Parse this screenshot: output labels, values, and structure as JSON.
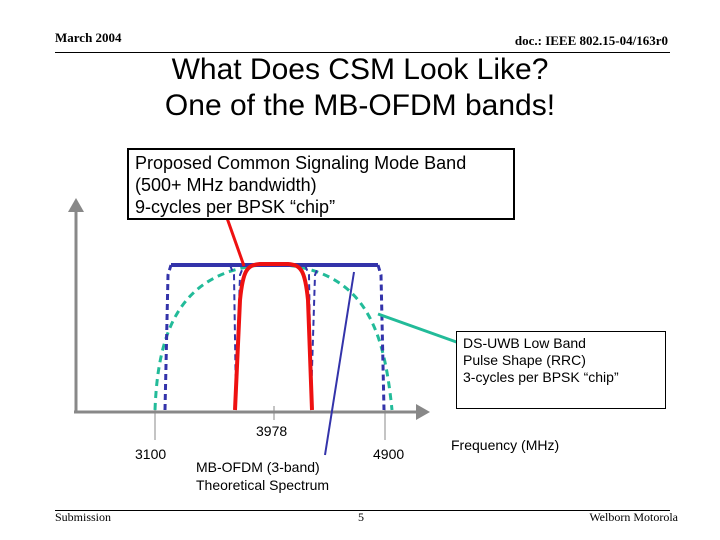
{
  "header": {
    "date": "March 2004",
    "doc": "doc.: IEEE 802.15-04/163r0"
  },
  "title": {
    "line1": "What Does CSM Look Like?",
    "line2": "One of the MB-OFDM bands!"
  },
  "callouts": {
    "csm": {
      "line1": "Proposed Common Signaling Mode Band",
      "line2": "(500+ MHz bandwidth)",
      "line3": "9-cycles per BPSK “chip”"
    },
    "dsuwb": {
      "line1": "DS-UWB Low Band",
      "line2": "Pulse Shape (RRC)",
      "line3": "3-cycles per BPSK “chip”"
    },
    "ofdm": {
      "line1": "MB-OFDM (3-band)",
      "line2": "Theoretical Spectrum"
    }
  },
  "axis": {
    "x_label": "Frequency (MHz)",
    "ticks": [
      "3100",
      "3978",
      "4900"
    ]
  },
  "colors": {
    "csm": "#ee1111",
    "ofdm": "#3333aa",
    "dsuwb": "#22bb99"
  },
  "footer": {
    "left": "Submission",
    "page": "5",
    "right": "Welborn Motorola"
  }
}
